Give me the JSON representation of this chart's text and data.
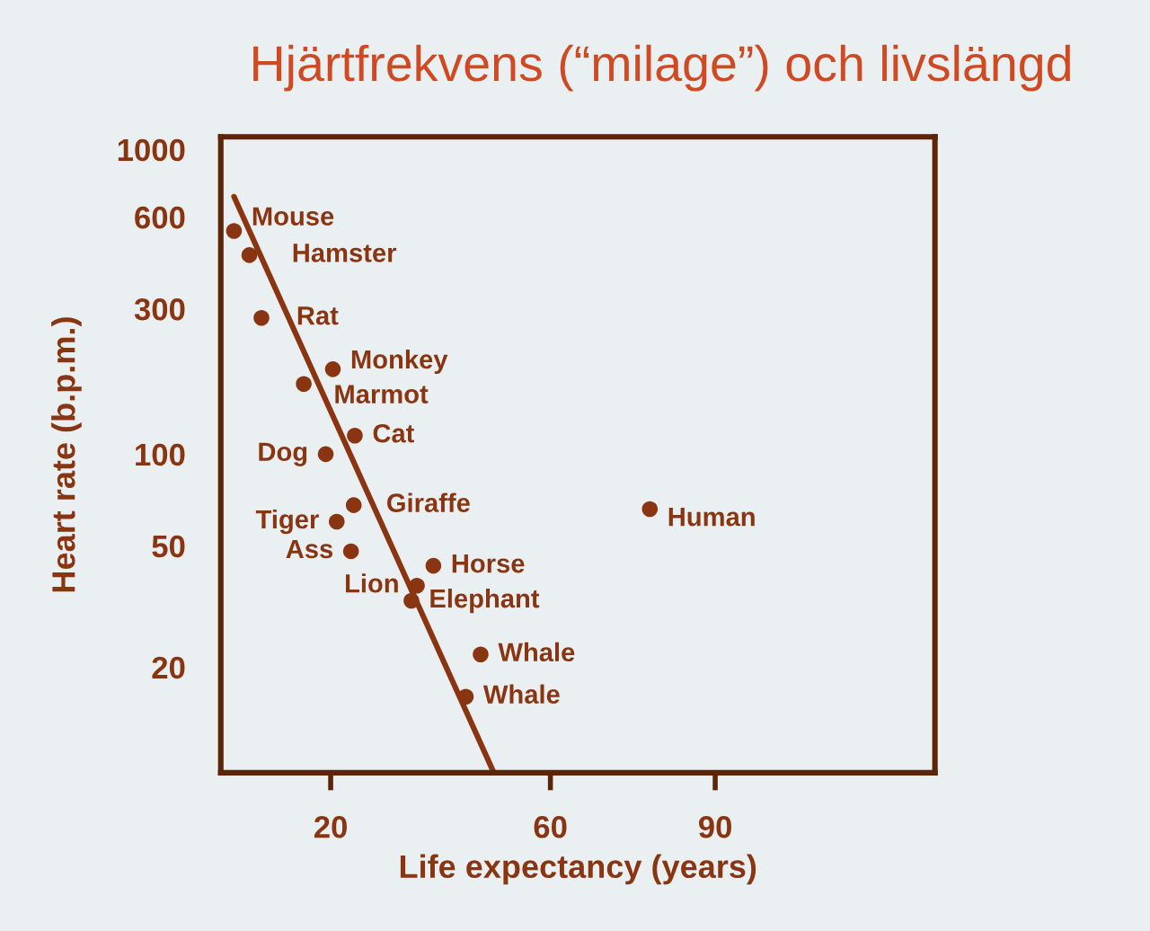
{
  "chart_data": {
    "type": "scatter",
    "title": "Hjärtfrekvens (“milage”) och livslängd",
    "xlabel": "Life expectancy (years)",
    "ylabel": "Heart rate (b.p.m.)",
    "log": "y",
    "xlim": [
      0,
      130
    ],
    "xticks": [
      20,
      60,
      90
    ],
    "ylim": [
      9,
      1100
    ],
    "yticks": [
      20,
      50,
      100,
      300,
      600,
      1000
    ],
    "grid": false,
    "marker": "circle",
    "series": [
      {
        "color": "#8a3512",
        "x": [
          2.4,
          5.2,
          7.4,
          20.4,
          15.1,
          24.4,
          19.1,
          24.2,
          21.1,
          23.7,
          38.7,
          35.7,
          34.7,
          47.3,
          44.6,
          78.1
        ],
        "values": [
          540,
          450,
          280,
          190,
          170,
          115,
          100,
          68,
          60,
          48,
          43,
          37,
          33,
          22,
          16,
          66
        ]
      },
      {
        "type": "line",
        "color": "#8a3512",
        "x": [
          2.4,
          49.7
        ],
        "values": [
          700,
          9
        ],
        "marker": "none",
        "line_style": "solid"
      }
    ],
    "annotations": [
      {
        "text": "Mouse",
        "x": 2.4,
        "y": 540
      },
      {
        "text": "Hamster",
        "x": 5.2,
        "y": 450
      },
      {
        "text": "Rat",
        "x": 7.4,
        "y": 280
      },
      {
        "text": "Monkey",
        "x": 20.4,
        "y": 190
      },
      {
        "text": "Marmot",
        "x": 15.1,
        "y": 170
      },
      {
        "text": "Cat",
        "x": 24.4,
        "y": 115
      },
      {
        "text": "Dog",
        "x": 19.1,
        "y": 100
      },
      {
        "text": "Giraffe",
        "x": 24.2,
        "y": 68
      },
      {
        "text": "Tiger",
        "x": 21.1,
        "y": 60
      },
      {
        "text": "Ass",
        "x": 23.7,
        "y": 48
      },
      {
        "text": "Horse",
        "x": 38.7,
        "y": 43
      },
      {
        "text": "Lion",
        "x": 35.7,
        "y": 37
      },
      {
        "text": "Elephant",
        "x": 34.7,
        "y": 33
      },
      {
        "text": "Whale",
        "x": 47.3,
        "y": 22
      },
      {
        "text": "Whale",
        "x": 44.6,
        "y": 16
      },
      {
        "text": "Human",
        "x": 78.1,
        "y": 66
      }
    ]
  }
}
